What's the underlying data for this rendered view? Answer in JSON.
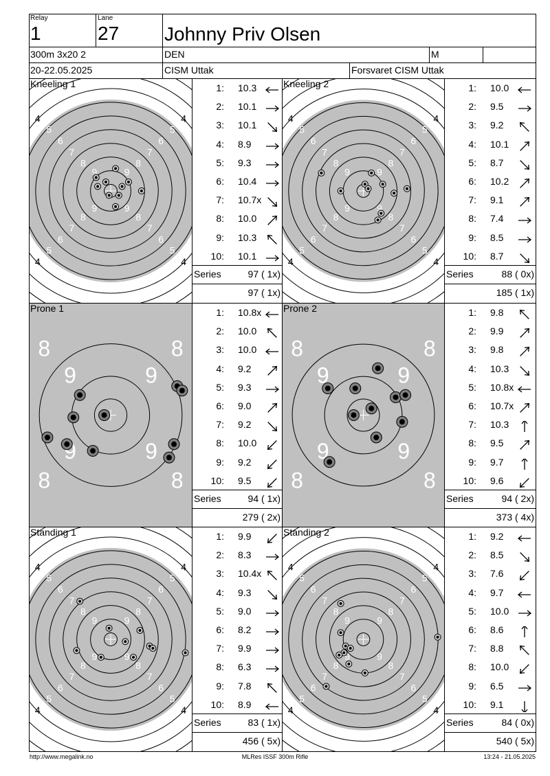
{
  "header": {
    "relay_label": "Relay",
    "relay": "1",
    "lane_label": "Lane",
    "lane": "27",
    "name": "Johnny Priv Olsen",
    "event": "300m 3x20 2",
    "nation": "DEN",
    "gender": "M",
    "date": "20-22.05.2025",
    "competition": "CISM Uttak",
    "club": "Forsvaret CISM Uttak"
  },
  "series": [
    {
      "title": "Kneeling 1",
      "target_type": "kneeling",
      "series_label": "Series",
      "series_total": "97 ( 1x)",
      "cumulative": "97 ( 1x)",
      "shots": [
        {
          "n": "1:",
          "v": "10.3",
          "dir": "W"
        },
        {
          "n": "2:",
          "v": "10.1",
          "dir": "E"
        },
        {
          "n": "3:",
          "v": "10.1",
          "dir": "SE"
        },
        {
          "n": "4:",
          "v": "8.9",
          "dir": "E"
        },
        {
          "n": "5:",
          "v": "9.3",
          "dir": "E"
        },
        {
          "n": "6:",
          "v": "10.4",
          "dir": "E"
        },
        {
          "n": "7:",
          "v": "10.7x",
          "dir": "SE"
        },
        {
          "n": "8:",
          "v": "10.0",
          "dir": "NE"
        },
        {
          "n": "9:",
          "v": "10.3",
          "dir": "NW"
        },
        {
          "n": "10:",
          "v": "10.1",
          "dir": "E"
        }
      ],
      "hits": [
        [
          0.57,
          0.48
        ],
        [
          0.55,
          0.52
        ],
        [
          0.42,
          0.48
        ],
        [
          0.47,
          0.46
        ],
        [
          0.61,
          0.46
        ],
        [
          0.69,
          0.5
        ],
        [
          0.53,
          0.57
        ],
        [
          0.53,
          0.4
        ],
        [
          0.49,
          0.52
        ],
        [
          0.41,
          0.44
        ]
      ]
    },
    {
      "title": "Kneeling 2",
      "target_type": "kneeling",
      "series_label": "Series",
      "series_total": "88 ( 0x)",
      "cumulative": "185 ( 1x)",
      "shots": [
        {
          "n": "1:",
          "v": "10.0",
          "dir": "W"
        },
        {
          "n": "2:",
          "v": "9.5",
          "dir": "E"
        },
        {
          "n": "3:",
          "v": "9.2",
          "dir": "NW"
        },
        {
          "n": "4:",
          "v": "10.1",
          "dir": "NE"
        },
        {
          "n": "5:",
          "v": "8.7",
          "dir": "SE"
        },
        {
          "n": "6:",
          "v": "10.2",
          "dir": "NE"
        },
        {
          "n": "7:",
          "v": "9.1",
          "dir": "NE"
        },
        {
          "n": "8:",
          "v": "7.4",
          "dir": "E"
        },
        {
          "n": "9:",
          "v": "8.5",
          "dir": "E"
        },
        {
          "n": "10:",
          "v": "8.7",
          "dir": "SE"
        }
      ],
      "hits": [
        [
          0.55,
          0.42
        ],
        [
          0.62,
          0.47
        ],
        [
          0.24,
          0.42
        ],
        [
          0.36,
          0.5
        ],
        [
          0.69,
          0.51
        ],
        [
          0.61,
          0.6
        ],
        [
          0.59,
          0.63
        ],
        [
          0.51,
          0.47
        ],
        [
          0.77,
          0.49
        ],
        [
          0.53,
          0.49
        ]
      ]
    },
    {
      "title": "Prone 1",
      "target_type": "prone",
      "series_label": "Series",
      "series_total": "94 ( 1x)",
      "cumulative": "279 ( 2x)",
      "shots": [
        {
          "n": "1:",
          "v": "10.8x",
          "dir": "W"
        },
        {
          "n": "2:",
          "v": "10.0",
          "dir": "NW"
        },
        {
          "n": "3:",
          "v": "10.0",
          "dir": "W"
        },
        {
          "n": "4:",
          "v": "9.2",
          "dir": "NE"
        },
        {
          "n": "5:",
          "v": "9.3",
          "dir": "E"
        },
        {
          "n": "6:",
          "v": "9.0",
          "dir": "NE"
        },
        {
          "n": "7:",
          "v": "9.2",
          "dir": "SE"
        },
        {
          "n": "8:",
          "v": "10.0",
          "dir": "SW"
        },
        {
          "n": "9:",
          "v": "9.2",
          "dir": "SW"
        },
        {
          "n": "10:",
          "v": "9.5",
          "dir": "SW"
        }
      ],
      "hits": [
        [
          0.46,
          0.5
        ],
        [
          0.31,
          0.41
        ],
        [
          0.27,
          0.51
        ],
        [
          0.91,
          0.37
        ],
        [
          0.94,
          0.39
        ],
        [
          0.89,
          0.63
        ],
        [
          0.86,
          0.69
        ],
        [
          0.39,
          0.66
        ],
        [
          0.23,
          0.63
        ],
        [
          0.11,
          0.6
        ]
      ]
    },
    {
      "title": "Prone 2",
      "target_type": "prone",
      "series_label": "Series",
      "series_total": "94 ( 2x)",
      "cumulative": "373 ( 4x)",
      "shots": [
        {
          "n": "1:",
          "v": "9.8",
          "dir": "NW"
        },
        {
          "n": "2:",
          "v": "9.9",
          "dir": "NE"
        },
        {
          "n": "3:",
          "v": "9.8",
          "dir": "NE"
        },
        {
          "n": "4:",
          "v": "10.3",
          "dir": "SE"
        },
        {
          "n": "5:",
          "v": "10.8x",
          "dir": "W"
        },
        {
          "n": "6:",
          "v": "10.7x",
          "dir": "NE"
        },
        {
          "n": "7:",
          "v": "10.3",
          "dir": "N"
        },
        {
          "n": "8:",
          "v": "9.5",
          "dir": "NE"
        },
        {
          "n": "9:",
          "v": "9.7",
          "dir": "N"
        },
        {
          "n": "10:",
          "v": "9.6",
          "dir": "SW"
        }
      ],
      "hits": [
        [
          0.59,
          0.29
        ],
        [
          0.28,
          0.38
        ],
        [
          0.45,
          0.38
        ],
        [
          0.7,
          0.42
        ],
        [
          0.76,
          0.41
        ],
        [
          0.44,
          0.5
        ],
        [
          0.55,
          0.47
        ],
        [
          0.74,
          0.53
        ],
        [
          0.58,
          0.6
        ],
        [
          0.29,
          0.71
        ]
      ]
    },
    {
      "title": "Standing 1",
      "target_type": "standing",
      "series_label": "Series",
      "series_total": "83 ( 1x)",
      "cumulative": "456 ( 5x)",
      "shots": [
        {
          "n": "1:",
          "v": "9.9",
          "dir": "SW"
        },
        {
          "n": "2:",
          "v": "8.3",
          "dir": "E"
        },
        {
          "n": "3:",
          "v": "10.4x",
          "dir": "NW"
        },
        {
          "n": "4:",
          "v": "9.3",
          "dir": "SE"
        },
        {
          "n": "5:",
          "v": "9.0",
          "dir": "E"
        },
        {
          "n": "6:",
          "v": "8.2",
          "dir": "E"
        },
        {
          "n": "7:",
          "v": "9.9",
          "dir": "E"
        },
        {
          "n": "8:",
          "v": "6.3",
          "dir": "E"
        },
        {
          "n": "9:",
          "v": "7.8",
          "dir": "NW"
        },
        {
          "n": "10:",
          "v": "8.9",
          "dir": "W"
        }
      ],
      "hits": [
        [
          0.49,
          0.45
        ],
        [
          0.68,
          0.46
        ],
        [
          0.59,
          0.51
        ],
        [
          0.74,
          0.53
        ],
        [
          0.76,
          0.54
        ],
        [
          0.64,
          0.58
        ],
        [
          0.44,
          0.58
        ],
        [
          0.96,
          0.56
        ],
        [
          0.31,
          0.33
        ],
        [
          0.29,
          0.55
        ]
      ]
    },
    {
      "title": "Standing 2",
      "target_type": "standing",
      "series_label": "Series",
      "series_total": "84 ( 0x)",
      "cumulative": "540 ( 5x)",
      "shots": [
        {
          "n": "1:",
          "v": "9.2",
          "dir": "W"
        },
        {
          "n": "2:",
          "v": "8.5",
          "dir": "SE"
        },
        {
          "n": "3:",
          "v": "7.6",
          "dir": "SW"
        },
        {
          "n": "4:",
          "v": "9.7",
          "dir": "W"
        },
        {
          "n": "5:",
          "v": "10.0",
          "dir": "E"
        },
        {
          "n": "6:",
          "v": "8.6",
          "dir": "N"
        },
        {
          "n": "7:",
          "v": "8.8",
          "dir": "NW"
        },
        {
          "n": "8:",
          "v": "10.0",
          "dir": "SW"
        },
        {
          "n": "9:",
          "v": "6.5",
          "dir": "E"
        },
        {
          "n": "10:",
          "v": "9.1",
          "dir": "S"
        }
      ],
      "hits": [
        [
          0.36,
          0.47
        ],
        [
          0.39,
          0.53
        ],
        [
          0.42,
          0.54
        ],
        [
          0.38,
          0.56
        ],
        [
          0.35,
          0.57
        ],
        [
          0.41,
          0.61
        ],
        [
          0.51,
          0.65
        ],
        [
          0.27,
          0.71
        ],
        [
          0.96,
          0.49
        ],
        [
          0.36,
          0.34
        ]
      ]
    }
  ],
  "footer": {
    "left": "http://www.megalink.no",
    "center": "MLRes ISSF 300m Rifle",
    "right": "13:24 - 21.05.2025"
  }
}
